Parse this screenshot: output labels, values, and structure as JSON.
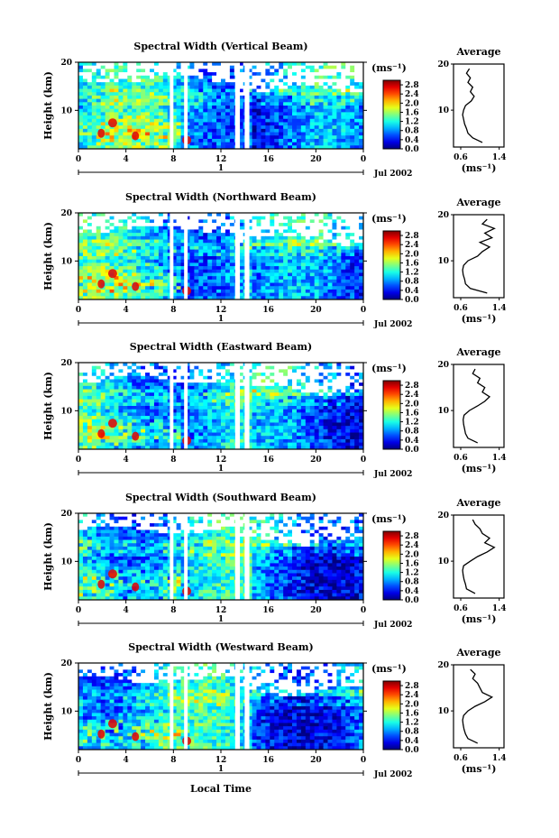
{
  "chart_data": {
    "type": "heatmap",
    "shared": {
      "x_ticks": [
        "0",
        "4",
        "8",
        "12",
        "16",
        "20",
        "0"
      ],
      "x_day_marker": "1",
      "date_label": "Jul 2002",
      "xlabel": "Local Time",
      "ylabel": "Height (km)",
      "y_ticks": [
        "20",
        "10"
      ],
      "ylim": [
        2,
        20
      ],
      "xlim_hours": [
        0,
        24
      ],
      "colorbar_unit": "(ms⁻¹)",
      "colorbar_ticks": [
        "2.8",
        "2.4",
        "2.0",
        "1.6",
        "1.2",
        "0.8",
        "0.4",
        "0.0"
      ],
      "colorbar_range": [
        0.0,
        3.0
      ],
      "data_gaps_hours": [
        [
          7.7,
          8.0
        ],
        [
          8.9,
          9.2
        ],
        [
          13.2,
          13.6
        ],
        [
          14.0,
          14.4
        ]
      ],
      "average_title": "Average",
      "average_xticks": [
        "0.6",
        "1.4"
      ],
      "average_xlabel": "(ms⁻¹)",
      "average_yticks": [
        "20",
        "10"
      ],
      "colors": {
        "low": "#0a1a8a",
        "mid": "#2a78ff",
        "high": "#ff2010",
        "background": "#ffffff"
      }
    },
    "panels": [
      {
        "title": "Spectral Width (Vertical Beam)",
        "average_profile": {
          "height_km": [
            3,
            4,
            5,
            6,
            7,
            8,
            9,
            10,
            11,
            12,
            13,
            14,
            15,
            16,
            17,
            18,
            19
          ],
          "width": [
            1.05,
            0.85,
            0.75,
            0.72,
            0.68,
            0.66,
            0.64,
            0.66,
            0.7,
            0.82,
            0.88,
            0.8,
            0.85,
            0.75,
            0.8,
            0.72,
            0.78
          ]
        }
      },
      {
        "title": "Spectral Width (Northward Beam)",
        "average_profile": {
          "height_km": [
            3,
            4,
            5,
            6,
            7,
            8,
            9,
            10,
            11,
            12,
            13,
            14,
            15,
            16,
            17,
            18,
            19
          ],
          "width": [
            1.15,
            0.8,
            0.7,
            0.68,
            0.65,
            0.64,
            0.66,
            0.75,
            0.95,
            1.05,
            1.2,
            1.0,
            1.25,
            1.1,
            1.3,
            1.05,
            1.15
          ]
        }
      },
      {
        "title": "Spectral Width (Eastward Beam)",
        "average_profile": {
          "height_km": [
            3,
            4,
            5,
            6,
            7,
            8,
            9,
            10,
            11,
            12,
            13,
            14,
            15,
            16,
            17,
            18,
            19
          ],
          "width": [
            0.95,
            0.75,
            0.7,
            0.68,
            0.66,
            0.65,
            0.67,
            0.78,
            0.95,
            1.1,
            1.2,
            1.05,
            1.1,
            0.95,
            1.0,
            0.85,
            0.9
          ]
        }
      },
      {
        "title": "Spectral Width (Southward Beam)",
        "average_profile": {
          "height_km": [
            3,
            4,
            5,
            6,
            7,
            8,
            9,
            10,
            11,
            12,
            13,
            14,
            15,
            16,
            17,
            18,
            19
          ],
          "width": [
            0.9,
            0.72,
            0.7,
            0.67,
            0.65,
            0.64,
            0.66,
            0.8,
            0.95,
            1.15,
            1.3,
            1.1,
            1.2,
            1.05,
            1.0,
            0.9,
            0.85
          ]
        }
      },
      {
        "title": "Spectral Width (Westward Beam)",
        "average_profile": {
          "height_km": [
            3,
            4,
            5,
            6,
            7,
            8,
            9,
            10,
            11,
            12,
            13,
            14,
            15,
            16,
            17,
            18,
            19
          ],
          "width": [
            0.95,
            0.75,
            0.7,
            0.67,
            0.65,
            0.64,
            0.66,
            0.75,
            0.9,
            1.1,
            1.25,
            1.05,
            1.0,
            0.95,
            0.85,
            0.9,
            0.8
          ]
        }
      }
    ]
  }
}
